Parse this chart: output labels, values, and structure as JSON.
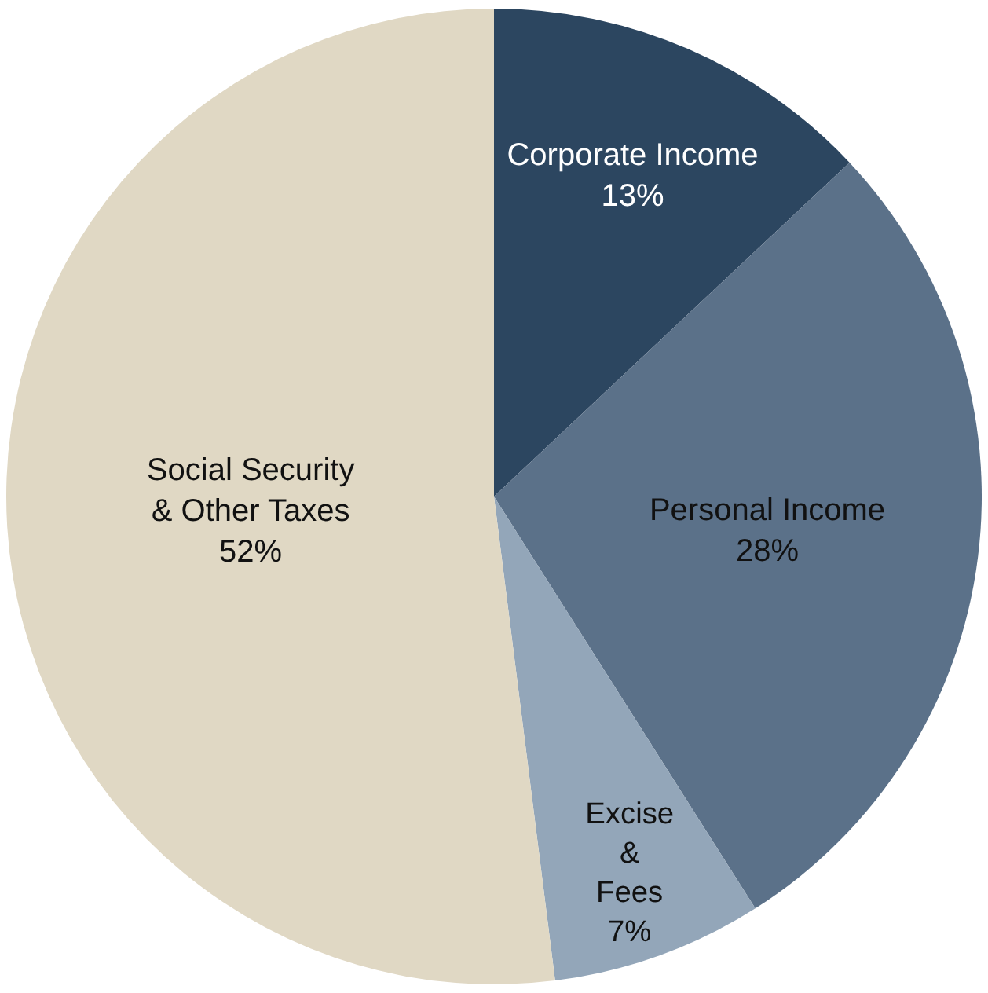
{
  "chart_data": {
    "type": "pie",
    "categories": [
      "Corporate Income",
      "Personal Income",
      "Excise & Fees",
      "Social Security & Other Taxes"
    ],
    "values": [
      13,
      28,
      7,
      52
    ],
    "value_labels": [
      "13%",
      "28%",
      "7%",
      "52%"
    ],
    "colors": [
      "#2c4660",
      "#5b7189",
      "#93a6b9",
      "#e0d8c4"
    ]
  }
}
